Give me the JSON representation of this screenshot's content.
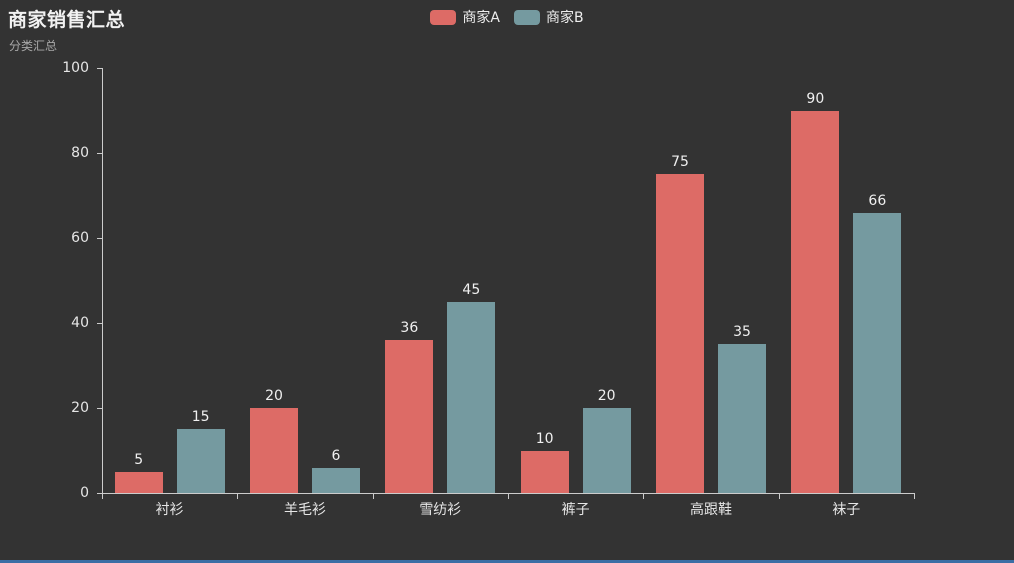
{
  "title": {
    "text": "商家销售汇总",
    "subtext": "分类汇总"
  },
  "legend": {
    "position": "top-center",
    "items": [
      {
        "label": "商家A",
        "color": "#dd6b66"
      },
      {
        "label": "商家B",
        "color": "#759aa0"
      }
    ]
  },
  "chart_data": {
    "type": "bar",
    "title": "商家销售汇总",
    "subtitle": "分类汇总",
    "categories": [
      "衬衫",
      "羊毛衫",
      "雪纺衫",
      "裤子",
      "高跟鞋",
      "袜子"
    ],
    "series": [
      {
        "name": "商家A",
        "color": "#dd6b66",
        "values": [
          5,
          20,
          36,
          10,
          75,
          90
        ]
      },
      {
        "name": "商家B",
        "color": "#759aa0",
        "values": [
          15,
          6,
          45,
          20,
          35,
          66
        ]
      }
    ],
    "xlabel": "",
    "ylabel": "",
    "ylim": [
      0,
      100
    ],
    "y_ticks": [
      0,
      20,
      40,
      60,
      80,
      100
    ],
    "grid": false,
    "value_labels": true,
    "legend_position": "top-center"
  },
  "colors": {
    "background": "#333333",
    "axis": "#cccccc",
    "text": "#eeeeee",
    "subtitle_text": "#a8a8a8",
    "series_a": "#dd6b66",
    "series_b": "#759aa0",
    "bottom_strip": "#3b6ea5"
  }
}
